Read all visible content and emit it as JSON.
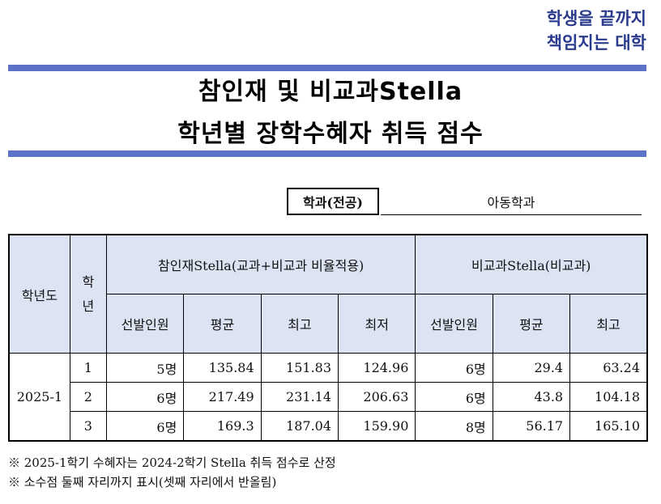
{
  "slogan": {
    "line1": "학생을 끝까지",
    "line2": "책임지는 대학"
  },
  "title": {
    "line1": "참인재 및 비교과Stella",
    "line2": "학년별 장학수혜자 취득 점수"
  },
  "department": {
    "label": "학과(전공)",
    "value": "아동학과"
  },
  "table": {
    "col_year": "학년도",
    "col_grade": "학년",
    "group1": "참인재Stella(교과+비교과 비율적용)",
    "group2": "비교과Stella(비교과)",
    "sub1": [
      "선발인원",
      "평균",
      "최고",
      "최저"
    ],
    "sub2": [
      "선발인원",
      "평균",
      "최고"
    ],
    "year": "2025-1",
    "rows": [
      {
        "grade": "1",
        "a_count": "5명",
        "a_avg": "135.84",
        "a_max": "151.83",
        "a_min": "124.96",
        "b_count": "6명",
        "b_avg": "29.4",
        "b_max": "63.24"
      },
      {
        "grade": "2",
        "a_count": "6명",
        "a_avg": "217.49",
        "a_max": "231.14",
        "a_min": "206.63",
        "b_count": "6명",
        "b_avg": "43.8",
        "b_max": "104.18"
      },
      {
        "grade": "3",
        "a_count": "6명",
        "a_avg": "169.3",
        "a_max": "187.04",
        "a_min": "159.90",
        "b_count": "8명",
        "b_avg": "56.17",
        "b_max": "165.10"
      }
    ]
  },
  "notes": [
    "※ 2025-1학기 수혜자는 2024-2학기 Stella 취득 점수로 산정",
    "※ 소수점 둘째 자리까지 표시(셋째 자리에서 반올림)"
  ]
}
